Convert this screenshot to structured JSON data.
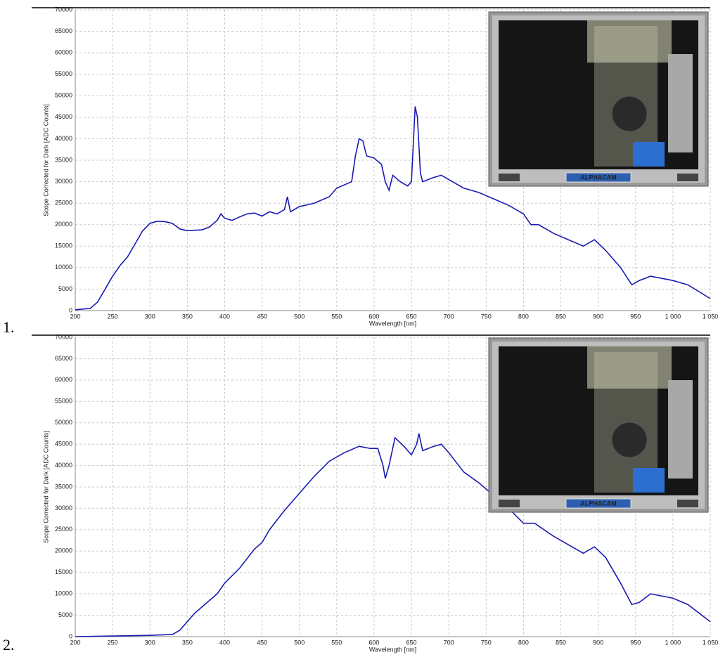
{
  "figure_labels": [
    "1.",
    "2."
  ],
  "chart_data": [
    {
      "type": "line",
      "xlabel": "Wavelength [nm]",
      "ylabel": "Scope Corrected for Dark [ADC Counts]",
      "inset_caption": "ALPHACAM",
      "xlim": [
        200,
        1050
      ],
      "ylim": [
        0,
        70000
      ],
      "grid": true,
      "xticks": [
        200,
        250,
        300,
        350,
        400,
        450,
        500,
        550,
        600,
        650,
        700,
        750,
        800,
        850,
        900,
        950,
        {
          "value": 1000,
          "label": "1 000"
        },
        {
          "value": 1050,
          "label": "1 050"
        }
      ],
      "yticks": [
        0,
        5000,
        10000,
        15000,
        20000,
        25000,
        30000,
        35000,
        40000,
        45000,
        50000,
        55000,
        60000,
        65000,
        70000
      ],
      "x": [
        200,
        220,
        230,
        240,
        250,
        260,
        270,
        280,
        290,
        300,
        310,
        320,
        330,
        340,
        350,
        360,
        370,
        380,
        390,
        395,
        400,
        410,
        420,
        430,
        440,
        450,
        460,
        470,
        480,
        484,
        488,
        500,
        520,
        540,
        550,
        570,
        575,
        580,
        585,
        590,
        600,
        610,
        615,
        620,
        625,
        635,
        645,
        650,
        655,
        658,
        662,
        665,
        680,
        690,
        700,
        720,
        740,
        760,
        780,
        800,
        810,
        820,
        840,
        860,
        880,
        895,
        910,
        930,
        945,
        955,
        970,
        1000,
        1020,
        1050
      ],
      "series": [
        {
          "color": "#1a1ab4",
          "values": [
            200,
            500,
            2000,
            5000,
            8000,
            10500,
            12500,
            15500,
            18500,
            20300,
            20800,
            20700,
            20300,
            19000,
            18600,
            18700,
            18800,
            19500,
            21000,
            22500,
            21500,
            21000,
            21800,
            22500,
            22700,
            22000,
            23000,
            22500,
            23500,
            26500,
            23000,
            24200,
            25000,
            26500,
            28500,
            30000,
            36000,
            40000,
            39500,
            36000,
            35500,
            34000,
            30000,
            28000,
            31500,
            30000,
            29000,
            30000,
            47500,
            45000,
            32000,
            30000,
            31000,
            31500,
            30500,
            28500,
            27500,
            26000,
            24500,
            22500,
            20000,
            20000,
            18000,
            16500,
            15000,
            16500,
            14000,
            10000,
            6000,
            7000,
            8000,
            7000,
            6000,
            2800
          ]
        }
      ]
    },
    {
      "type": "line",
      "xlabel": "Wavelength [nm]",
      "ylabel": "Scope Corrected for Dark [ADC Counts]",
      "inset_caption": "ALPHACAM",
      "xlim": [
        200,
        1050
      ],
      "ylim": [
        0,
        70000
      ],
      "grid": true,
      "xticks": [
        200,
        250,
        300,
        350,
        400,
        450,
        500,
        550,
        600,
        650,
        700,
        750,
        800,
        850,
        900,
        950,
        {
          "value": 1000,
          "label": "1 000"
        },
        {
          "value": 1050,
          "label": "1 050"
        }
      ],
      "yticks": [
        0,
        5000,
        10000,
        15000,
        20000,
        25000,
        30000,
        35000,
        40000,
        45000,
        50000,
        55000,
        60000,
        65000,
        70000
      ],
      "x": [
        200,
        300,
        330,
        340,
        350,
        360,
        370,
        390,
        400,
        420,
        440,
        450,
        460,
        480,
        500,
        520,
        540,
        560,
        580,
        595,
        605,
        612,
        615,
        620,
        628,
        640,
        650,
        657,
        660,
        665,
        680,
        690,
        700,
        720,
        740,
        760,
        780,
        800,
        815,
        840,
        860,
        880,
        895,
        910,
        930,
        945,
        955,
        970,
        1000,
        1020,
        1050
      ],
      "series": [
        {
          "color": "#1a1ab4",
          "values": [
            0,
            300,
            500,
            1500,
            3500,
            5500,
            7000,
            10000,
            12500,
            16000,
            20500,
            22000,
            25000,
            29500,
            33500,
            37500,
            41000,
            43000,
            44500,
            44000,
            44000,
            40000,
            37000,
            40000,
            46500,
            44500,
            42500,
            45000,
            47500,
            43500,
            44500,
            45000,
            43000,
            38500,
            36000,
            33000,
            30000,
            26500,
            26500,
            23500,
            21500,
            19500,
            21000,
            18500,
            12500,
            7500,
            8000,
            10000,
            9000,
            7500,
            3500
          ]
        }
      ]
    }
  ]
}
